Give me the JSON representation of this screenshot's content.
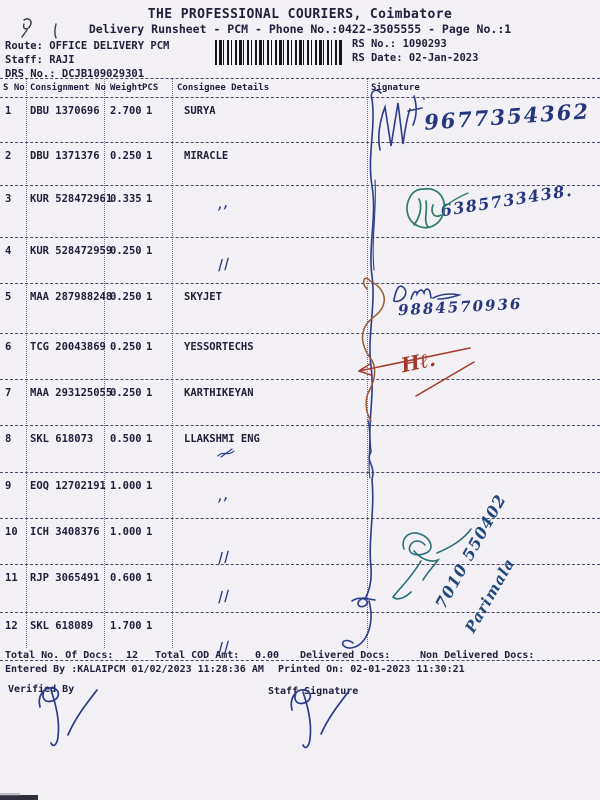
{
  "document": {
    "title": "THE PROFESSIONAL COURIERS, Coimbatore",
    "subtitle": "Delivery Runsheet - PCM - Phone No.:0422-3505555 - Page No.:1",
    "route": "Route: OFFICE DELIVERY PCM",
    "staff": "Staff: RAJI",
    "drs_no": "DRS No.: DCJB109029301",
    "rs_no": "RS No.: 1090293",
    "rs_date": "RS Date: 02-Jan-2023"
  },
  "table": {
    "headers": {
      "sno": "S No",
      "consignment": "Consignment No",
      "weight": "Weight",
      "pcs": "PCS",
      "consignee": "Consignee Details",
      "signature": "Signature"
    },
    "rows": [
      {
        "sno": "1",
        "consignment": "DBU 1370696",
        "weight": "2.700",
        "pcs": "1",
        "consignee": "SURYA",
        "mark": ""
      },
      {
        "sno": "2",
        "consignment": "DBU 1371376",
        "weight": "0.250",
        "pcs": "1",
        "consignee": "MIRACLE",
        "mark": ""
      },
      {
        "sno": "3",
        "consignment": "KUR 528472961",
        "weight": "0.335",
        "pcs": "1",
        "consignee": "",
        "mark": "’’"
      },
      {
        "sno": "4",
        "consignment": "KUR 528472959",
        "weight": "0.250",
        "pcs": "1",
        "consignee": "",
        "mark": "//"
      },
      {
        "sno": "5",
        "consignment": "MAA 287988248",
        "weight": "0.250",
        "pcs": "1",
        "consignee": "SKYJET",
        "mark": ""
      },
      {
        "sno": "6",
        "consignment": "TCG 20043869",
        "weight": "0.250",
        "pcs": "1",
        "consignee": "YESSORTECHS",
        "mark": ""
      },
      {
        "sno": "7",
        "consignment": "MAA 293125055",
        "weight": "0.250",
        "pcs": "1",
        "consignee": "KARTHIKEYAN",
        "mark": ""
      },
      {
        "sno": "8",
        "consignment": "SKL 618073",
        "weight": "0.500",
        "pcs": "1",
        "consignee": "LLAKSHMI ENG",
        "mark": ""
      },
      {
        "sno": "9",
        "consignment": "EOQ 12702191",
        "weight": "1.000",
        "pcs": "1",
        "consignee": "",
        "mark": "’’"
      },
      {
        "sno": "10",
        "consignment": "ICH 3408376",
        "weight": "1.000",
        "pcs": "1",
        "consignee": "",
        "mark": "//"
      },
      {
        "sno": "11",
        "consignment": "RJP 3065491",
        "weight": "0.600",
        "pcs": "1",
        "consignee": "",
        "mark": "//"
      },
      {
        "sno": "12",
        "consignment": "SKL 618089",
        "weight": "1.700",
        "pcs": "1",
        "consignee": "",
        "mark": "//"
      }
    ]
  },
  "footer": {
    "total_docs_label": "Total No. Of Docs:",
    "total_docs_value": "12",
    "cod_label": "Total COD Amt:",
    "cod_value": "0.00",
    "delivered_label": "Delivered Docs:",
    "non_delivered_label": "Non Delivered Docs:",
    "entered_line": "Entered By :KALAIPCM 01/02/2023 11:28:36 AM",
    "printed_line": "Printed On: 02-01-2023 11:30:21",
    "verified_by_label": "Verified By",
    "staff_signature_label": "Staff Signature"
  },
  "handwriting": {
    "phone_row1": "9677354362",
    "phone_row3": "6385733438.",
    "phone_row5": "9884570936",
    "red_initials": "Hℓ.",
    "diagonal_number": "7010 550402",
    "diagonal_name": "Parimala"
  },
  "colors": {
    "paper": "#f3f1f6",
    "printed_text": "#20203a",
    "blue_ink": "#2c3d8a",
    "teal_ink": "#2e7b6c",
    "red_ink": "#a3392b",
    "brown_ink": "#9a5a33"
  },
  "icons": {
    "barcode": "barcode"
  }
}
